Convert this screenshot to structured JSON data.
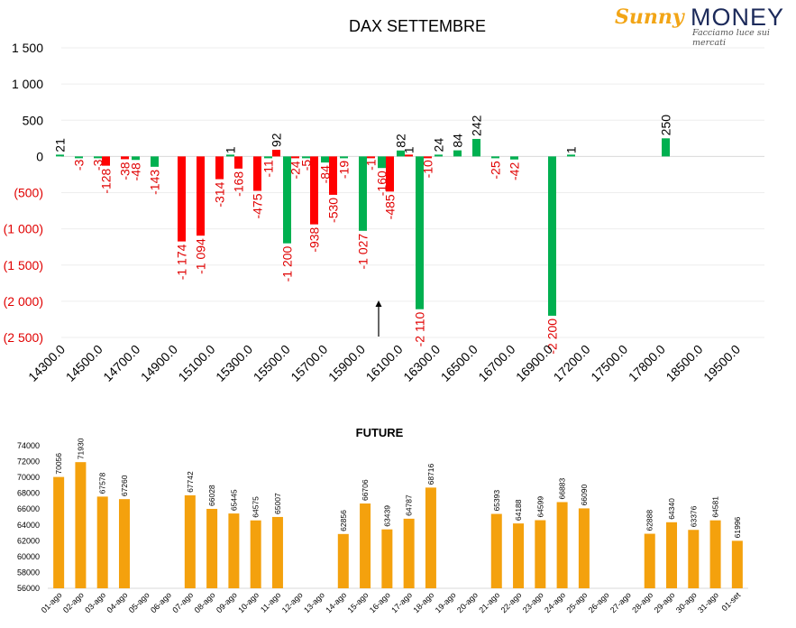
{
  "logo": {
    "brand_a": "Sunny",
    "brand_b": "MONEY",
    "tagline": "Facciamo luce sui mercati"
  },
  "colors": {
    "red": "#ff0000",
    "green": "#00b050",
    "orange": "#f4a10d",
    "neg_label": "#e00000"
  },
  "chart_data": [
    {
      "type": "bar",
      "title": "DAX SETTEMBRE",
      "ylim": [
        -2500,
        1500
      ],
      "yticks": [
        1500,
        1000,
        500,
        0,
        -500,
        -1000,
        -1500,
        -2000,
        -2500
      ],
      "ytick_labels": [
        "1 500",
        "1 000",
        "500",
        "0",
        "(500)",
        "(1 000)",
        "(1 500)",
        "(2 000)",
        "(2 500)"
      ],
      "xtick_labels": [
        "14300.0",
        "14500.0",
        "14700.0",
        "14900.0",
        "15100.0",
        "15300.0",
        "15500.0",
        "15700.0",
        "15900.0",
        "16100.0",
        "16300.0",
        "16500.0",
        "16700.0",
        "16900.0",
        "17200.0",
        "17500.0",
        "17800.0",
        "18500.0",
        "19500.0"
      ],
      "series": [
        {
          "color": "green",
          "values": [
            21,
            -3,
            -3,
            0,
            -48,
            -143,
            0,
            0,
            0,
            1,
            0,
            -11,
            -1200,
            -5,
            -84,
            -19,
            -1027,
            -160,
            82,
            -2110,
            24,
            84,
            242,
            -25,
            -42,
            0,
            -2200,
            1,
            0,
            0,
            0,
            0,
            250,
            0,
            0,
            0,
            0,
            0
          ]
        },
        {
          "color": "red",
          "values": [
            0,
            0,
            -128,
            -38,
            0,
            0,
            -1174,
            -1094,
            -314,
            -168,
            -475,
            92,
            -24,
            -938,
            -530,
            0,
            -1,
            -485,
            1,
            -10,
            0,
            0,
            0,
            0,
            0,
            0,
            0,
            0,
            0,
            0,
            0,
            0,
            0,
            0,
            0,
            0,
            0,
            0
          ]
        }
      ],
      "labels_green": [
        "21",
        "-3",
        "-3",
        "",
        "-48",
        "-143",
        "",
        "",
        "",
        "1",
        "",
        "-11",
        "-1 200",
        "-5",
        "-84",
        "-19",
        "-1 027",
        "-160",
        "82",
        "-2 110",
        "24",
        "84",
        "242",
        "-25",
        "-42",
        "",
        "-2 200",
        "1",
        "",
        "",
        "",
        "",
        "250",
        "",
        "",
        "",
        "",
        ""
      ],
      "labels_red": [
        "",
        "",
        "-128",
        "-38",
        "",
        "",
        "-1 174",
        "-1 094",
        "-314",
        "-168",
        "-475",
        "92",
        "-24",
        "-938",
        "-530",
        "",
        "-1",
        "-485",
        "1",
        "-10",
        "",
        "",
        "",
        "",
        "",
        "",
        "",
        "",
        "",
        "",
        "",
        "",
        "",
        "",
        "",
        "",
        "",
        ""
      ],
      "annotation": "arrow at 16000"
    },
    {
      "type": "bar",
      "title": "FUTURE",
      "ylim": [
        56000,
        74000
      ],
      "yticks": [
        56000,
        58000,
        60000,
        62000,
        64000,
        66000,
        68000,
        70000,
        72000,
        74000
      ],
      "ytick_labels": [
        "56000",
        "58000",
        "60000",
        "62000",
        "64000",
        "66000",
        "68000",
        "70000",
        "72000",
        "74000"
      ],
      "categories": [
        "01-ago",
        "02-ago",
        "03-ago",
        "04-ago",
        "05-ago",
        "06-ago",
        "07-ago",
        "08-ago",
        "09-ago",
        "10-ago",
        "11-ago",
        "12-ago",
        "13-ago",
        "14-ago",
        "15-ago",
        "16-ago",
        "17-ago",
        "18-ago",
        "19-ago",
        "20-ago",
        "21-ago",
        "22-ago",
        "23-ago",
        "24-ago",
        "25-ago",
        "26-ago",
        "27-ago",
        "28-ago",
        "29-ago",
        "30-ago",
        "31-ago",
        "01-set"
      ],
      "values": [
        70056,
        71930,
        67578,
        67260,
        null,
        null,
        67742,
        66028,
        65445,
        64575,
        65007,
        null,
        null,
        62856,
        66706,
        63439,
        64787,
        68716,
        null,
        null,
        65393,
        64188,
        64599,
        66883,
        66090,
        null,
        null,
        62888,
        64340,
        63376,
        64581,
        61996
      ],
      "value_labels": [
        "70056",
        "71930",
        "67578",
        "67260",
        "",
        "",
        "67742",
        "66028",
        "65445",
        "64575",
        "65007",
        "",
        "",
        "62856",
        "66706",
        "63439",
        "64787",
        "68716",
        "",
        "",
        "65393",
        "64188",
        "64599",
        "66883",
        "66090",
        "",
        "",
        "62888",
        "64340",
        "63376",
        "64581",
        "61996"
      ]
    }
  ]
}
